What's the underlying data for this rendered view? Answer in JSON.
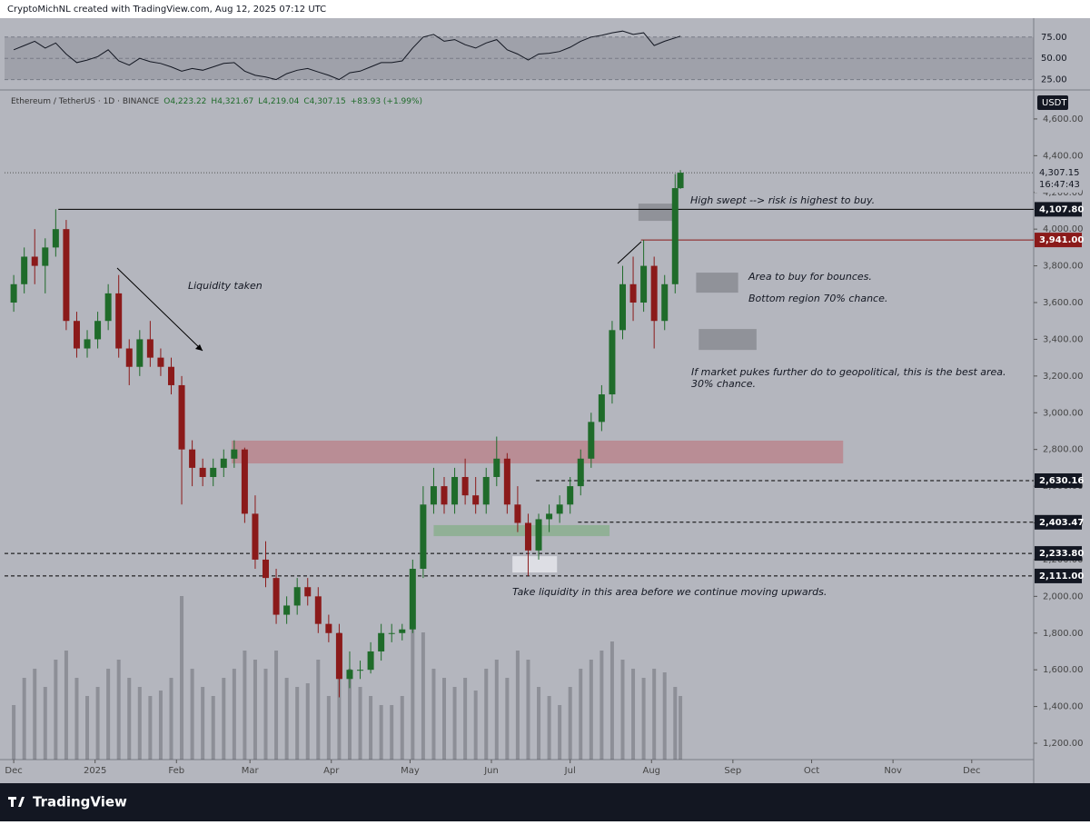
{
  "header": {
    "credit": "CryptoMichNL created with TradingView.com, Aug 12, 2025 07:12 UTC",
    "brand": "TradingView"
  },
  "chart_data": {
    "type": "candlestick",
    "symbol": "Ethereum / TetherUS · 1D · BINANCE",
    "ohlc_legend": [
      "O4,223.22",
      "H4,321.67",
      "L4,219.04",
      "C4,307.15",
      "+83.93 (+1.99%)"
    ],
    "currency": "USDT",
    "up_color": "#1f6b2a",
    "down_color": "#8b1a1a",
    "x": [
      0,
      4,
      8,
      12,
      16,
      20,
      24,
      28,
      32,
      36,
      40,
      44,
      48,
      52,
      56,
      60,
      64,
      68,
      72,
      76,
      80,
      84,
      88,
      92,
      96,
      100,
      104,
      108,
      112,
      116,
      120,
      124,
      128,
      132,
      136,
      140,
      144,
      148,
      152,
      156,
      160,
      164,
      168,
      172,
      176,
      180,
      184,
      188,
      192,
      196,
      200,
      204,
      208,
      212,
      216,
      220,
      224,
      228,
      232,
      236,
      240,
      244,
      248,
      252,
      254
    ],
    "open": [
      3600,
      3700,
      3850,
      3800,
      3900,
      4000,
      3500,
      3350,
      3400,
      3500,
      3650,
      3350,
      3250,
      3400,
      3300,
      3250,
      3150,
      2800,
      2700,
      2650,
      2700,
      2750,
      2800,
      2450,
      2200,
      2100,
      1900,
      1950,
      2050,
      2000,
      1850,
      1800,
      1550,
      1600,
      1600,
      1700,
      1800,
      1800,
      1820,
      2150,
      2500,
      2600,
      2500,
      2650,
      2550,
      2500,
      2650,
      2750,
      2500,
      2400,
      2250,
      2420,
      2450,
      2500,
      2600,
      2750,
      2950,
      3100,
      3450,
      3700,
      3600,
      3800,
      3500,
      3700,
      4223.22
    ],
    "high": [
      3750,
      3900,
      4000,
      3950,
      4107.8,
      4050,
      3550,
      3450,
      3550,
      3700,
      3750,
      3400,
      3450,
      3500,
      3350,
      3300,
      3200,
      2850,
      2750,
      2750,
      2800,
      2850,
      2810,
      2550,
      2300,
      2150,
      2000,
      2100,
      2100,
      2050,
      1900,
      1850,
      1700,
      1650,
      1750,
      1850,
      1850,
      1850,
      2200,
      2600,
      2700,
      2650,
      2700,
      2750,
      2650,
      2700,
      2870,
      2780,
      2600,
      2450,
      2450,
      2500,
      2550,
      2650,
      2800,
      3000,
      3150,
      3500,
      3800,
      3850,
      3941,
      3850,
      3750,
      4300,
      4321.67
    ],
    "low": [
      3550,
      3650,
      3700,
      3650,
      3850,
      3450,
      3300,
      3300,
      3350,
      3450,
      3300,
      3150,
      3200,
      3250,
      3200,
      3100,
      2500,
      2600,
      2600,
      2600,
      2650,
      2700,
      2400,
      2150,
      2050,
      1850,
      1850,
      1900,
      1950,
      1800,
      1750,
      1450,
      1500,
      1550,
      1580,
      1650,
      1750,
      1760,
      1800,
      2100,
      2450,
      2450,
      2450,
      2500,
      2450,
      2450,
      2600,
      2450,
      2350,
      2111,
      2200,
      2350,
      2400,
      2450,
      2550,
      2700,
      2900,
      3050,
      3400,
      3500,
      3550,
      3350,
      3450,
      3650,
      4219.04
    ],
    "close": [
      3700,
      3850,
      3800,
      3900,
      4000,
      3500,
      3350,
      3400,
      3500,
      3650,
      3350,
      3250,
      3400,
      3300,
      3250,
      3150,
      2800,
      2700,
      2650,
      2700,
      2750,
      2800,
      2450,
      2200,
      2100,
      1900,
      1950,
      2050,
      2000,
      1850,
      1800,
      1550,
      1600,
      1600,
      1700,
      1800,
      1800,
      1820,
      2150,
      2500,
      2600,
      2500,
      2650,
      2550,
      2500,
      2650,
      2750,
      2500,
      2400,
      2250,
      2420,
      2450,
      2500,
      2600,
      2750,
      2950,
      3100,
      3450,
      3700,
      3600,
      3800,
      3500,
      3700,
      4223.22,
      4307.15
    ],
    "volume": [
      30,
      45,
      50,
      40,
      55,
      60,
      45,
      35,
      40,
      50,
      55,
      45,
      40,
      35,
      38,
      45,
      90,
      50,
      40,
      35,
      45,
      50,
      60,
      55,
      50,
      60,
      45,
      40,
      42,
      55,
      35,
      70,
      50,
      40,
      35,
      30,
      30,
      35,
      75,
      70,
      50,
      45,
      40,
      45,
      38,
      50,
      55,
      45,
      60,
      55,
      40,
      35,
      30,
      40,
      50,
      55,
      60,
      65,
      55,
      50,
      45,
      50,
      48,
      40,
      35
    ],
    "rsi": [
      60,
      65,
      70,
      62,
      68,
      55,
      45,
      48,
      52,
      60,
      47,
      42,
      50,
      46,
      44,
      40,
      35,
      38,
      36,
      40,
      44,
      45,
      35,
      30,
      28,
      25,
      32,
      36,
      38,
      34,
      30,
      25,
      33,
      35,
      40,
      45,
      45,
      47,
      62,
      75,
      78,
      70,
      72,
      66,
      62,
      68,
      72,
      60,
      55,
      48,
      55,
      56,
      58,
      63,
      70,
      75,
      77,
      80,
      82,
      78,
      80,
      65,
      70,
      74,
      76
    ],
    "xlim": [
      -3.5,
      388.6
    ],
    "xticks": [
      {
        "value": 0,
        "label": "Dec"
      },
      {
        "value": 31,
        "label": "2025"
      },
      {
        "value": 62,
        "label": "Feb"
      },
      {
        "value": 90,
        "label": "Mar"
      },
      {
        "value": 121,
        "label": "Apr"
      },
      {
        "value": 151,
        "label": "May"
      },
      {
        "value": 182,
        "label": "Jun"
      },
      {
        "value": 212,
        "label": "Jul"
      },
      {
        "value": 243,
        "label": "Aug"
      },
      {
        "value": 274,
        "label": "Sep"
      },
      {
        "value": 304,
        "label": "Oct"
      },
      {
        "value": 335,
        "label": "Nov"
      },
      {
        "value": 365,
        "label": "Dec"
      }
    ],
    "ylim": [
      1111,
      4753
    ],
    "yticks": [
      {
        "value": 1200,
        "label": "1,200.00"
      },
      {
        "value": 1400,
        "label": "1,400.00"
      },
      {
        "value": 1600,
        "label": "1,600.00"
      },
      {
        "value": 1800,
        "label": "1,800.00"
      },
      {
        "value": 2000,
        "label": "2,000.00"
      },
      {
        "value": 2200,
        "label": "2,200.00"
      },
      {
        "value": 2400,
        "label": "2,400.00"
      },
      {
        "value": 2600,
        "label": "2,600.00"
      },
      {
        "value": 2800,
        "label": "2,800.00"
      },
      {
        "value": 3000,
        "label": "3,000.00"
      },
      {
        "value": 3200,
        "label": "3,200.00"
      },
      {
        "value": 3400,
        "label": "3,400.00"
      },
      {
        "value": 3600,
        "label": "3,600.00"
      },
      {
        "value": 3800,
        "label": "3,800.00"
      },
      {
        "value": 4000,
        "label": "4,000.00"
      },
      {
        "value": 4200,
        "label": "4,200.00"
      },
      {
        "value": 4400,
        "label": "4,400.00"
      },
      {
        "value": 4600,
        "label": "4,600.00"
      }
    ],
    "rsi_ylim": [
      15,
      95
    ],
    "rsi_yticks": [
      {
        "value": 75,
        "label": "75.00"
      },
      {
        "value": 50,
        "label": "50.00"
      },
      {
        "value": 25,
        "label": "25.00"
      }
    ],
    "last_price": {
      "value": 4307.15,
      "label": "4,307.15",
      "countdown": "16:47:43"
    },
    "price_lines": [
      {
        "value": 4107.8,
        "label": "4,107.80",
        "color": "#000000",
        "style": "solid",
        "from": 17
      },
      {
        "value": 3941,
        "label": "3,941.00",
        "color": "#8b1a1a",
        "style": "solid",
        "from": 239
      },
      {
        "value": 2630.16,
        "label": "2,630.16",
        "color": "#000000",
        "style": "dashed",
        "from": 199
      },
      {
        "value": 2403.47,
        "label": "2,403.47",
        "color": "#000000",
        "style": "dashed",
        "from": 215
      },
      {
        "value": 2233.8,
        "label": "2,233.80",
        "color": "#000000",
        "style": "dashed",
        "from": -3.5
      },
      {
        "value": 2111,
        "label": "2,111.00",
        "color": "#000000",
        "style": "dashed",
        "from": -3.5
      }
    ],
    "zones": [
      {
        "x": [
          83,
          316
        ],
        "y": [
          2724,
          2848
        ],
        "color": "rgba(190,90,100,0.45)"
      },
      {
        "x": [
          160,
          227
        ],
        "y": [
          2328,
          2388
        ],
        "color": "rgba(110,170,110,0.5)"
      },
      {
        "x": [
          190,
          207
        ],
        "y": [
          2130,
          2219
        ],
        "color": "rgba(235,235,240,0.75)"
      },
      {
        "x": [
          238,
          253
        ],
        "y": [
          4045,
          4139
        ],
        "color": "rgba(120,122,128,0.6)"
      },
      {
        "x": [
          260,
          276
        ],
        "y": [
          3654,
          3763
        ],
        "color": "rgba(120,122,128,0.6)"
      },
      {
        "x": [
          261,
          283
        ],
        "y": [
          3342,
          3456
        ],
        "color": "rgba(120,122,128,0.6)"
      }
    ],
    "annotations": [
      "High swept --> risk is highest to buy.",
      "Liquidity taken",
      "Area to buy for bounces.",
      "Bottom region 70% chance.",
      "If market pukes further do to geopolitical, this is the best area.",
      "30% chance.",
      "Take liquidity in this area before we continue moving upwards."
    ]
  }
}
